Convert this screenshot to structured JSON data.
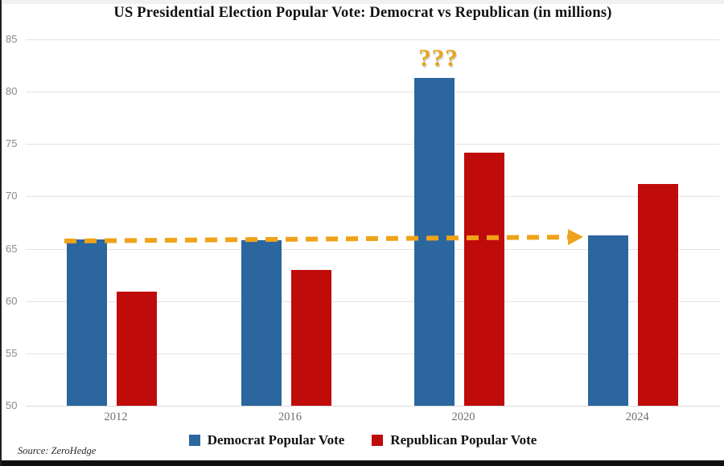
{
  "source": "Source: ZeroHedge",
  "annotations": {
    "question_marks": "???",
    "question_marks_note": "placed above 2020 Democrat bar",
    "dashed_arrow_note": "horizontal gold dashed arrow at ~66 million from 2012 Democrat bar top pointing to 2024 Democrat bar top",
    "dashed_arrow_y_value": 66
  },
  "colors": {
    "democrat": "#2b669f",
    "republican": "#c00b0b",
    "gold_annotation": "#efa31a",
    "gridline": "#e4e4e4",
    "axis_text": "#8a8a8a"
  },
  "chart_data": {
    "type": "bar",
    "title": "US Presidential Election Popular Vote: Democrat vs Republican (in millions)",
    "categories": [
      "2012",
      "2016",
      "2020",
      "2024"
    ],
    "series": [
      {
        "name": "Democrat Popular Vote",
        "color": "#2b669f",
        "values": [
          65.9,
          65.8,
          81.3,
          66.3
        ]
      },
      {
        "name": "Republican Popular Vote",
        "color": "#c00b0b",
        "values": [
          60.9,
          63.0,
          74.2,
          71.2
        ]
      }
    ],
    "xlabel": "",
    "ylabel": "",
    "ylim": [
      50,
      85
    ],
    "yticks": [
      85,
      80,
      75,
      70,
      65,
      60,
      55,
      50
    ],
    "grid": true,
    "legend_position": "bottom"
  },
  "legend": {
    "items": [
      {
        "label": "Democrat Popular Vote",
        "color": "#2b669f"
      },
      {
        "label": "Republican Popular Vote",
        "color": "#c00b0b"
      }
    ]
  }
}
